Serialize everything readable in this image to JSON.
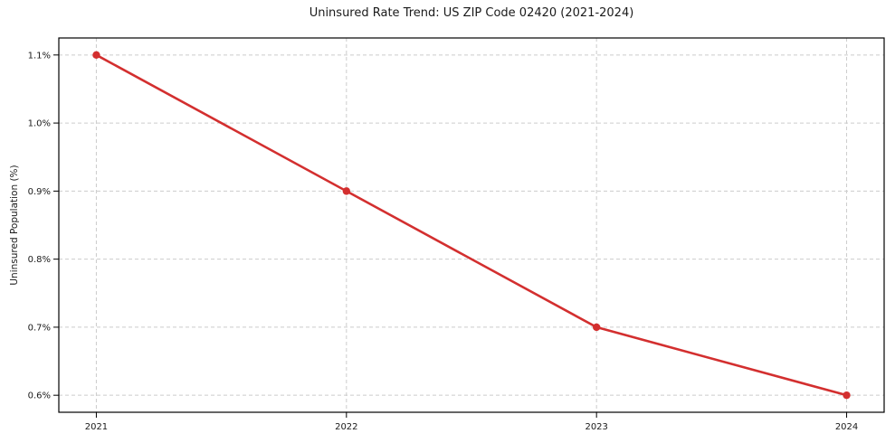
{
  "chart_data": {
    "type": "line",
    "title": "Uninsured Rate Trend: US ZIP Code 02420 (2021-2024)",
    "ylabel": "Uninsured Population (%)",
    "xlabel": "",
    "x": [
      2021,
      2022,
      2023,
      2024
    ],
    "values": [
      1.1,
      0.9,
      0.7,
      0.6
    ],
    "unit": "%",
    "xlim": [
      2020.85,
      2024.15
    ],
    "ylim": [
      0.575,
      1.125
    ],
    "x_ticks": [
      {
        "v": 2021,
        "label": "2021"
      },
      {
        "v": 2022,
        "label": "2022"
      },
      {
        "v": 2023,
        "label": "2023"
      },
      {
        "v": 2024,
        "label": "2024"
      }
    ],
    "y_ticks": [
      {
        "v": 0.6,
        "label": "0.6%"
      },
      {
        "v": 0.7,
        "label": "0.7%"
      },
      {
        "v": 0.8,
        "label": "0.8%"
      },
      {
        "v": 0.9,
        "label": "0.9%"
      },
      {
        "v": 1.0,
        "label": "1.0%"
      },
      {
        "v": 1.1,
        "label": "1.1%"
      }
    ],
    "grid": true,
    "grid_style": "dashed",
    "legend_position": "none",
    "colors": {
      "line": "#d32f2f",
      "marker": "#d32f2f",
      "grid": "#cccccc",
      "axis": "#000000",
      "text": "#1a1a1a",
      "background": "#ffffff"
    }
  }
}
